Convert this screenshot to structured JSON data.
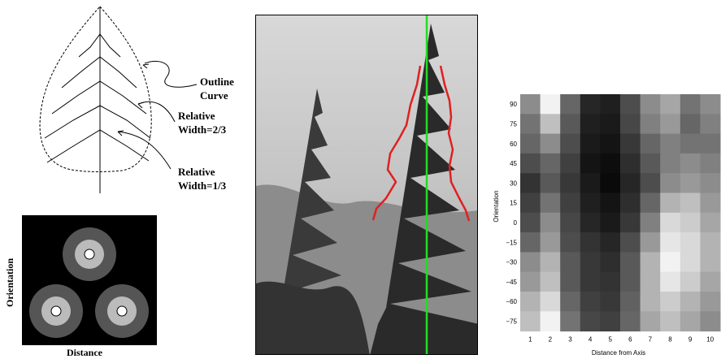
{
  "leaf_diagram": {
    "labels": {
      "outline": [
        "Outline",
        "Curve"
      ],
      "width_two_thirds": [
        "Relative",
        "Width=2/3"
      ],
      "width_one_third": [
        "Relative",
        "Width=1/3"
      ]
    }
  },
  "feature_diagram": {
    "y_label": "Orientation",
    "x_label": "Distance"
  },
  "photo": {
    "axis_line_color": "#22dd22",
    "outline_color": "#e02020"
  },
  "chart_data": {
    "type": "heatmap",
    "xlabel": "Distance from Axis",
    "ylabel": "Orientation",
    "x": [
      "1",
      "2",
      "3",
      "4",
      "5",
      "6",
      "7",
      "8",
      "9",
      "10"
    ],
    "y_tick_labels": [
      "90",
      "75",
      "60",
      "45",
      "30",
      "15",
      "0",
      "−15",
      "−30",
      "−45",
      "−60",
      "−75"
    ],
    "grid": false,
    "legend": "none",
    "values": [
      [
        0.55,
        0.95,
        0.4,
        0.15,
        0.12,
        0.3,
        0.55,
        0.65,
        0.45,
        0.55
      ],
      [
        0.45,
        0.75,
        0.35,
        0.12,
        0.1,
        0.28,
        0.5,
        0.6,
        0.4,
        0.5
      ],
      [
        0.4,
        0.55,
        0.3,
        0.1,
        0.08,
        0.22,
        0.4,
        0.5,
        0.45,
        0.45
      ],
      [
        0.3,
        0.4,
        0.25,
        0.08,
        0.05,
        0.18,
        0.35,
        0.5,
        0.55,
        0.5
      ],
      [
        0.2,
        0.35,
        0.22,
        0.1,
        0.04,
        0.15,
        0.3,
        0.55,
        0.6,
        0.55
      ],
      [
        0.25,
        0.45,
        0.25,
        0.12,
        0.08,
        0.18,
        0.4,
        0.7,
        0.75,
        0.6
      ],
      [
        0.3,
        0.55,
        0.28,
        0.15,
        0.1,
        0.22,
        0.5,
        0.85,
        0.8,
        0.65
      ],
      [
        0.4,
        0.6,
        0.3,
        0.2,
        0.15,
        0.3,
        0.6,
        0.9,
        0.85,
        0.7
      ],
      [
        0.55,
        0.7,
        0.35,
        0.22,
        0.18,
        0.35,
        0.7,
        0.95,
        0.85,
        0.7
      ],
      [
        0.6,
        0.75,
        0.35,
        0.22,
        0.2,
        0.35,
        0.7,
        0.9,
        0.8,
        0.65
      ],
      [
        0.7,
        0.85,
        0.4,
        0.25,
        0.22,
        0.38,
        0.7,
        0.8,
        0.7,
        0.6
      ],
      [
        0.75,
        0.95,
        0.45,
        0.28,
        0.25,
        0.4,
        0.65,
        0.75,
        0.65,
        0.55
      ]
    ]
  }
}
